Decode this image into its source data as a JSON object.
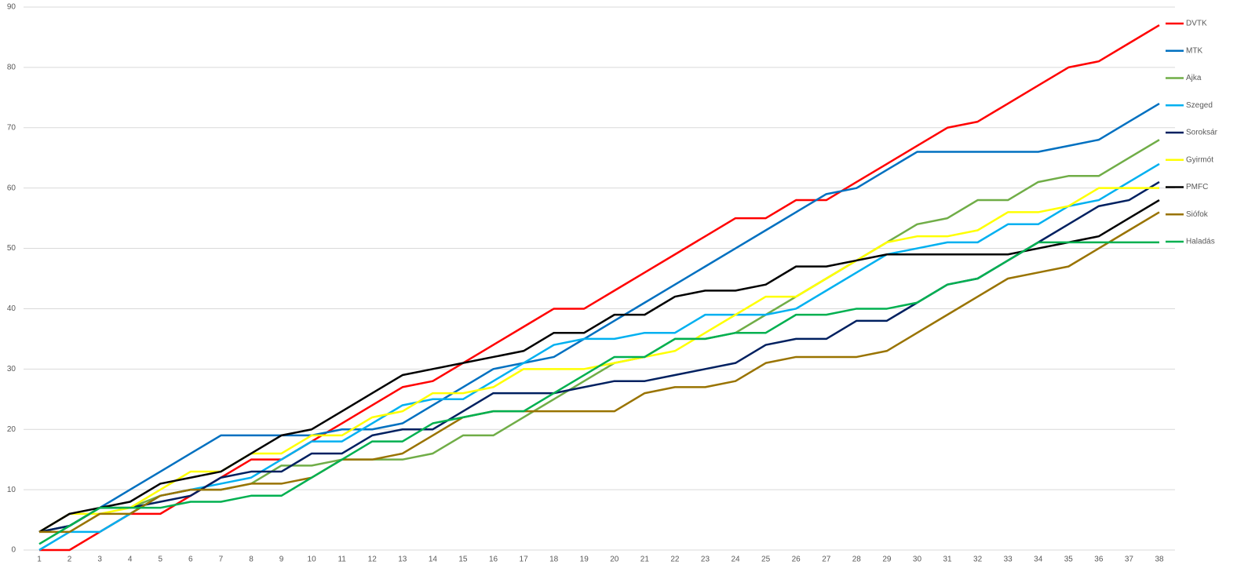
{
  "chart_data": {
    "type": "line",
    "categories": [
      1,
      2,
      3,
      4,
      5,
      6,
      7,
      8,
      9,
      10,
      11,
      12,
      13,
      14,
      15,
      16,
      17,
      18,
      19,
      20,
      21,
      22,
      23,
      24,
      25,
      26,
      27,
      28,
      29,
      30,
      31,
      32,
      33,
      34,
      35,
      36,
      37,
      38
    ],
    "ylim": [
      0,
      90
    ],
    "yticks": [
      0,
      10,
      20,
      30,
      40,
      50,
      60,
      70,
      80,
      90
    ],
    "grid": true,
    "legend": "right",
    "series": [
      {
        "name": "DVTK",
        "color": "#ff0000",
        "values": [
          0,
          0,
          3,
          6,
          6,
          9,
          12,
          15,
          15,
          18,
          21,
          24,
          27,
          28,
          31,
          34,
          37,
          40,
          40,
          43,
          46,
          49,
          52,
          55,
          55,
          58,
          58,
          61,
          64,
          67,
          70,
          71,
          74,
          77,
          80,
          81,
          84,
          87
        ]
      },
      {
        "name": "MTK",
        "color": "#0070c0",
        "values": [
          3,
          4,
          7,
          10,
          13,
          16,
          19,
          19,
          19,
          19,
          20,
          20,
          21,
          24,
          27,
          30,
          31,
          32,
          35,
          38,
          41,
          44,
          47,
          50,
          53,
          56,
          59,
          60,
          63,
          66,
          66,
          66,
          66,
          66,
          67,
          68,
          71,
          74
        ]
      },
      {
        "name": "Ajka",
        "color": "#70ad47",
        "values": [
          3,
          4,
          7,
          7,
          9,
          10,
          10,
          11,
          14,
          14,
          15,
          15,
          15,
          16,
          19,
          19,
          22,
          25,
          28,
          31,
          32,
          35,
          35,
          36,
          39,
          42,
          45,
          48,
          51,
          54,
          55,
          58,
          58,
          61,
          62,
          62,
          65,
          68
        ]
      },
      {
        "name": "Szeged",
        "color": "#00b0f0",
        "values": [
          0,
          3,
          3,
          6,
          9,
          10,
          11,
          12,
          15,
          18,
          18,
          21,
          24,
          25,
          25,
          28,
          31,
          34,
          35,
          35,
          36,
          36,
          39,
          39,
          39,
          40,
          43,
          46,
          49,
          50,
          51,
          51,
          54,
          54,
          57,
          58,
          61,
          64
        ]
      },
      {
        "name": "Soroksár",
        "color": "#002060",
        "values": [
          3,
          4,
          7,
          7,
          8,
          9,
          12,
          13,
          13,
          16,
          16,
          19,
          20,
          20,
          23,
          26,
          26,
          26,
          27,
          28,
          28,
          29,
          30,
          31,
          34,
          35,
          35,
          38,
          38,
          41,
          44,
          45,
          48,
          51,
          54,
          57,
          58,
          61
        ]
      },
      {
        "name": "Gyirmót",
        "color": "#ffff00",
        "values": [
          3,
          6,
          6,
          7,
          10,
          13,
          13,
          16,
          16,
          19,
          19,
          22,
          23,
          26,
          26,
          27,
          30,
          30,
          30,
          31,
          32,
          33,
          36,
          39,
          42,
          42,
          45,
          48,
          51,
          52,
          52,
          53,
          56,
          56,
          57,
          60,
          60,
          60
        ]
      },
      {
        "name": "PMFC",
        "color": "#000000",
        "values": [
          3,
          6,
          7,
          8,
          11,
          12,
          13,
          16,
          19,
          20,
          23,
          26,
          29,
          30,
          31,
          32,
          33,
          36,
          36,
          39,
          39,
          42,
          43,
          43,
          44,
          47,
          47,
          48,
          49,
          49,
          49,
          49,
          49,
          50,
          51,
          52,
          55,
          58
        ]
      },
      {
        "name": "Siófok",
        "color": "#997300",
        "values": [
          3,
          3,
          6,
          6,
          9,
          10,
          10,
          11,
          11,
          12,
          15,
          15,
          16,
          19,
          22,
          23,
          23,
          23,
          23,
          23,
          26,
          27,
          27,
          28,
          31,
          32,
          32,
          32,
          33,
          36,
          39,
          42,
          45,
          46,
          47,
          50,
          53,
          56
        ]
      },
      {
        "name": "Haladás",
        "color": "#00b050",
        "values": [
          1,
          4,
          7,
          7,
          7,
          8,
          8,
          9,
          9,
          12,
          15,
          18,
          18,
          21,
          22,
          23,
          23,
          26,
          29,
          32,
          32,
          35,
          35,
          36,
          36,
          39,
          39,
          40,
          40,
          41,
          44,
          45,
          48,
          51,
          51,
          51,
          51,
          51
        ]
      }
    ]
  }
}
